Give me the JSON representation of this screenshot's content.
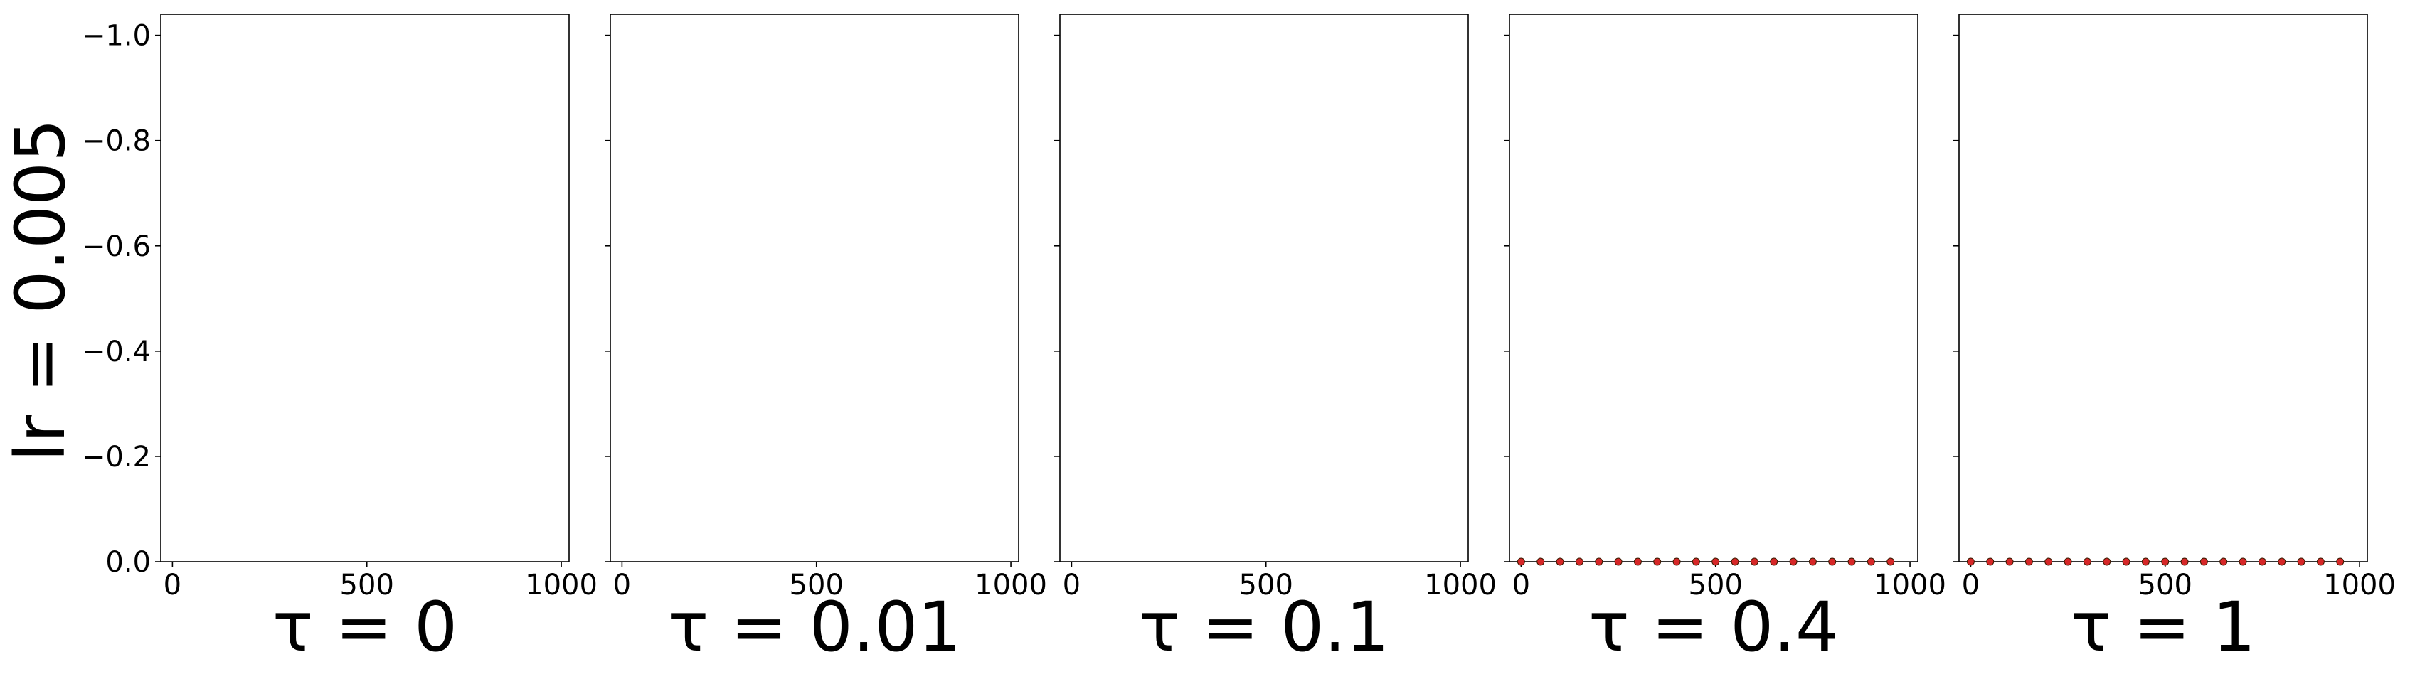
{
  "figure": {
    "row_label": "lr = 0.005"
  },
  "chart_data": [
    {
      "type": "scatter",
      "xlabel": "τ = 0",
      "ylabel": "lr = 0.005",
      "xlim": [
        -30,
        1020
      ],
      "ylim": [
        0.0,
        -1.04
      ],
      "y_inverted": true,
      "xticks": [
        0,
        500,
        1000
      ],
      "yticks": [
        0.0,
        -0.2,
        -0.4,
        -0.6,
        -0.8,
        -1.0
      ],
      "series": [
        {
          "x": [],
          "y": []
        }
      ]
    },
    {
      "type": "scatter",
      "xlabel": "τ = 0.01",
      "xlim": [
        -30,
        1020
      ],
      "ylim": [
        0.0,
        -1.04
      ],
      "y_inverted": true,
      "xticks": [
        0,
        500,
        1000
      ],
      "series": [
        {
          "x": [],
          "y": []
        }
      ]
    },
    {
      "type": "scatter",
      "xlabel": "τ = 0.1",
      "xlim": [
        -30,
        1020
      ],
      "ylim": [
        0.0,
        -1.04
      ],
      "y_inverted": true,
      "xticks": [
        0,
        500,
        1000
      ],
      "series": [
        {
          "x": [],
          "y": []
        }
      ]
    },
    {
      "type": "scatter",
      "xlabel": "τ = 0.4",
      "xlim": [
        -30,
        1020
      ],
      "ylim": [
        0.0,
        -1.04
      ],
      "y_inverted": true,
      "xticks": [
        0,
        500,
        1000
      ],
      "series": [
        {
          "color": "#d62728",
          "x": [
            0,
            50,
            100,
            150,
            200,
            250,
            300,
            350,
            400,
            450,
            500,
            550,
            600,
            650,
            700,
            750,
            800,
            850,
            900,
            950
          ],
          "y": [
            0,
            0,
            0,
            0,
            0,
            0,
            0,
            0,
            0,
            0,
            0,
            0,
            0,
            0,
            0,
            0,
            0,
            0,
            0,
            0
          ]
        }
      ]
    },
    {
      "type": "scatter",
      "xlabel": "τ = 1",
      "xlim": [
        -30,
        1020
      ],
      "ylim": [
        0.0,
        -1.04
      ],
      "y_inverted": true,
      "xticks": [
        0,
        500,
        1000
      ],
      "series": [
        {
          "color": "#d62728",
          "x": [
            0,
            50,
            100,
            150,
            200,
            250,
            300,
            350,
            400,
            450,
            500,
            550,
            600,
            650,
            700,
            750,
            800,
            850,
            900,
            950
          ],
          "y": [
            0,
            0,
            0,
            0,
            0,
            0,
            0,
            0,
            0,
            0,
            0,
            0,
            0,
            0,
            0,
            0,
            0,
            0,
            0,
            0
          ]
        }
      ]
    }
  ]
}
